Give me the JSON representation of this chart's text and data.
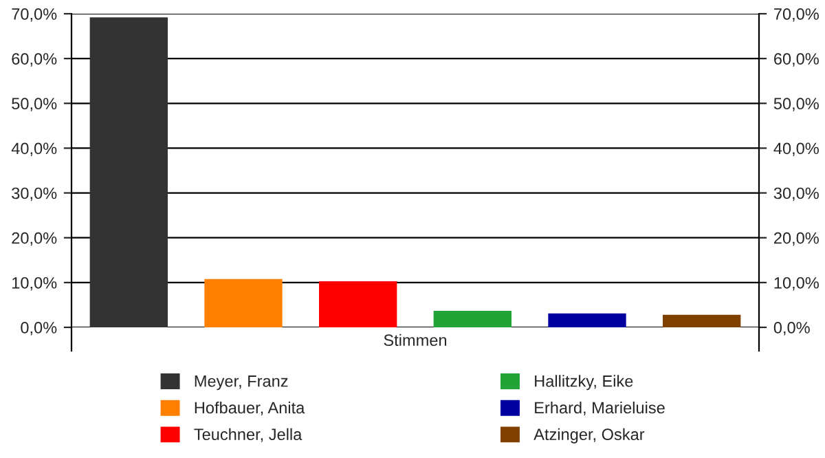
{
  "chart_data": {
    "type": "bar",
    "categories": [
      "Stimmen"
    ],
    "series": [
      {
        "name": "Meyer, Franz",
        "color": "#333333",
        "values": [
          69.2
        ]
      },
      {
        "name": "Hofbauer, Anita",
        "color": "#ff8000",
        "values": [
          10.8
        ]
      },
      {
        "name": "Teuchner, Jella",
        "color": "#ff0000",
        "values": [
          10.3
        ]
      },
      {
        "name": "Hallitzky, Eike",
        "color": "#21a336",
        "values": [
          3.7
        ]
      },
      {
        "name": "Erhard, Marieluise",
        "color": "#0000a0",
        "values": [
          3.1
        ]
      },
      {
        "name": "Atzinger, Oskar",
        "color": "#804000",
        "values": [
          2.8
        ]
      }
    ],
    "ylim": [
      0,
      70
    ],
    "yticks": [
      {
        "value": 0,
        "label": "0,0%"
      },
      {
        "value": 10,
        "label": "10,0%"
      },
      {
        "value": 20,
        "label": "20,0%"
      },
      {
        "value": 30,
        "label": "30,0%"
      },
      {
        "value": 40,
        "label": "40,0%"
      },
      {
        "value": 50,
        "label": "50,0%"
      },
      {
        "value": 60,
        "label": "60,0%"
      },
      {
        "value": 70,
        "label": "70,0%"
      }
    ],
    "grid": "y",
    "legend": "bottom"
  }
}
